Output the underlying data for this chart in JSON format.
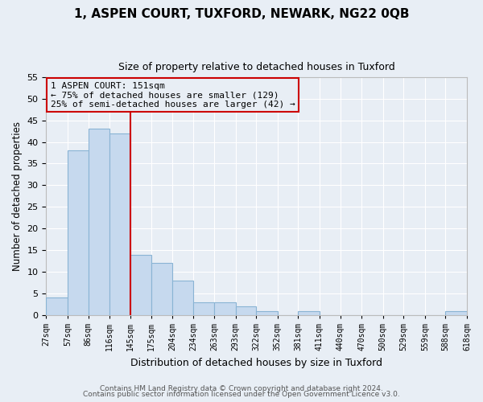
{
  "title": "1, ASPEN COURT, TUXFORD, NEWARK, NG22 0QB",
  "subtitle": "Size of property relative to detached houses in Tuxford",
  "xlabel": "Distribution of detached houses by size in Tuxford",
  "ylabel": "Number of detached properties",
  "bar_color": "#c6d9ee",
  "bar_edge_color": "#8ab4d4",
  "background_color": "#e8eef5",
  "axes_bg_color": "#e8eef5",
  "grid_color": "#ffffff",
  "bin_edges": [
    27,
    57,
    86,
    116,
    145,
    175,
    204,
    234,
    263,
    293,
    322,
    352,
    381,
    411,
    440,
    470,
    500,
    529,
    559,
    588,
    618
  ],
  "bin_labels": [
    "27sqm",
    "57sqm",
    "86sqm",
    "116sqm",
    "145sqm",
    "175sqm",
    "204sqm",
    "234sqm",
    "263sqm",
    "293sqm",
    "322sqm",
    "352sqm",
    "381sqm",
    "411sqm",
    "440sqm",
    "470sqm",
    "500sqm",
    "529sqm",
    "559sqm",
    "588sqm",
    "618sqm"
  ],
  "counts": [
    4,
    38,
    43,
    42,
    14,
    12,
    8,
    3,
    3,
    2,
    1,
    0,
    1,
    0,
    0,
    0,
    0,
    0,
    0,
    1
  ],
  "vline_x": 145,
  "vline_color": "#cc0000",
  "annotation_line1": "1 ASPEN COURT: 151sqm",
  "annotation_line2": "← 75% of detached houses are smaller (129)",
  "annotation_line3": "25% of semi-detached houses are larger (42) →",
  "annotation_box_color": "#cc0000",
  "ylim": [
    0,
    55
  ],
  "yticks": [
    0,
    5,
    10,
    15,
    20,
    25,
    30,
    35,
    40,
    45,
    50,
    55
  ],
  "footer1": "Contains HM Land Registry data © Crown copyright and database right 2024.",
  "footer2": "Contains public sector information licensed under the Open Government Licence v3.0.",
  "title_fontsize": 11,
  "subtitle_fontsize": 9
}
